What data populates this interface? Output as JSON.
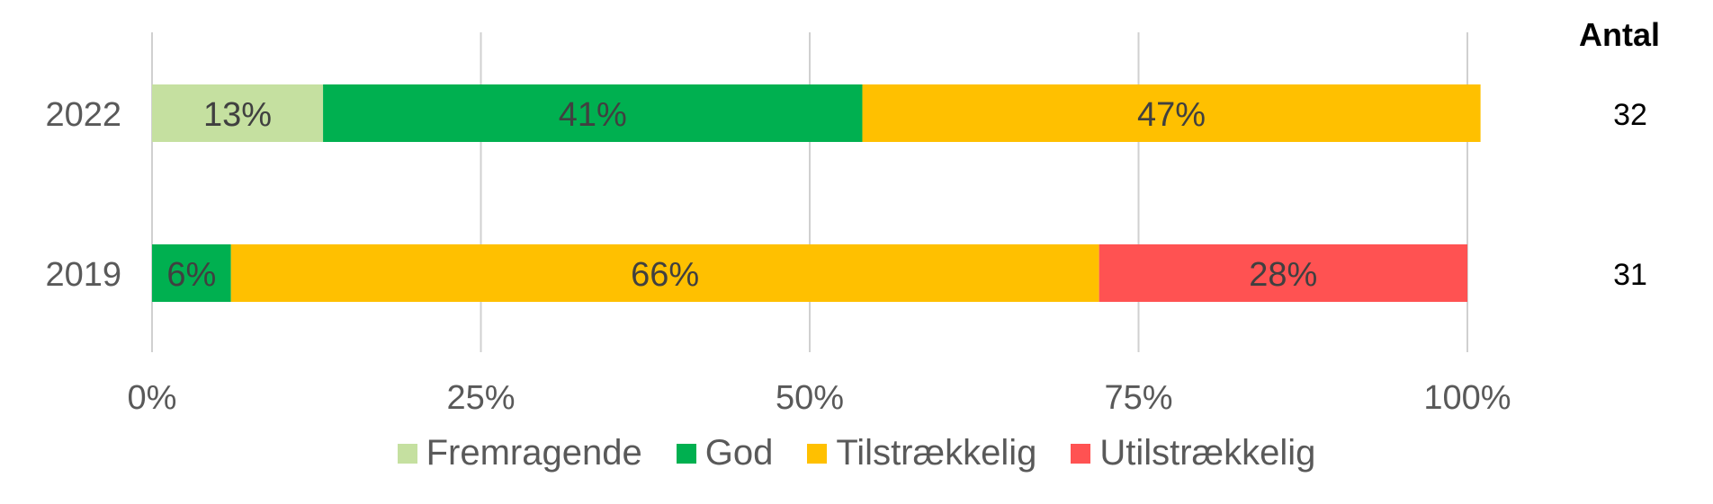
{
  "chart_data": {
    "type": "bar",
    "orientation": "horizontal",
    "stacked": true,
    "percent": true,
    "categories": [
      "2022",
      "2019"
    ],
    "series": [
      {
        "name": "Fremragende",
        "color": "#C5E0A0",
        "values": [
          13,
          0
        ],
        "labels": [
          "13%",
          ""
        ]
      },
      {
        "name": "God",
        "color": "#00B050",
        "values": [
          41,
          6
        ],
        "labels": [
          "41%",
          "6%"
        ]
      },
      {
        "name": "Tilstrækkelig",
        "color": "#FFC000",
        "values": [
          47,
          66
        ],
        "labels": [
          "47%",
          "66%"
        ]
      },
      {
        "name": "Utilstrækkelig",
        "color": "#FF5252",
        "values": [
          0,
          28
        ],
        "labels": [
          "",
          "28%"
        ]
      }
    ],
    "xlim": [
      0,
      100
    ],
    "x_ticks": [
      "0%",
      "25%",
      "50%",
      "75%",
      "100%"
    ],
    "grid": true,
    "legend_position": "bottom"
  },
  "antal": {
    "title": "Antal",
    "values": [
      "32",
      "31"
    ]
  }
}
